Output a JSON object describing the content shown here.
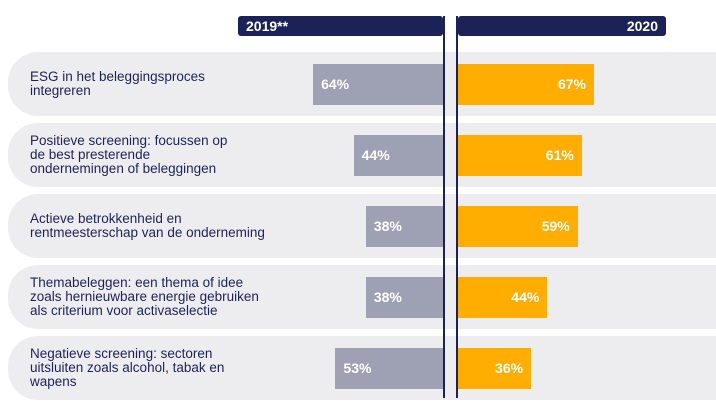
{
  "colors": {
    "header_bg": "#1b2257",
    "row_bg": "#ededf0",
    "series_2019": "#9ea1b3",
    "series_2020": "#ffad00",
    "label_text": "#1b2257"
  },
  "chart_data": {
    "type": "bar",
    "orientation": "horizontal-diverging",
    "series": [
      {
        "name": "2019**",
        "values": [
          64,
          44,
          38,
          38,
          53
        ],
        "labels": [
          "64%",
          "44%",
          "38%",
          "38%",
          "53%"
        ]
      },
      {
        "name": "2020",
        "values": [
          67,
          61,
          59,
          44,
          36
        ],
        "labels": [
          "67%",
          "61%",
          "59%",
          "44%",
          "36%"
        ]
      }
    ],
    "categories": [
      [
        "ESG in het beleggingsproces",
        "integreren"
      ],
      [
        "Positieve screening:  focussen op",
        "de best presterende",
        "ondernemingen  of beleggingen"
      ],
      [
        "Actieve betrokkenheid  en",
        "rentmeesterschap van de onderneming"
      ],
      [
        "Themabeleggen:  een thema of idee",
        "zoals hernieuwbare  energie gebruiken",
        "als criterium  voor activaselectie"
      ],
      [
        "Negatieve screening:  sectoren",
        "uitsluiten  zoals alcohol, tabak en",
        "wapens"
      ]
    ],
    "unit": "%",
    "legend": "top"
  }
}
